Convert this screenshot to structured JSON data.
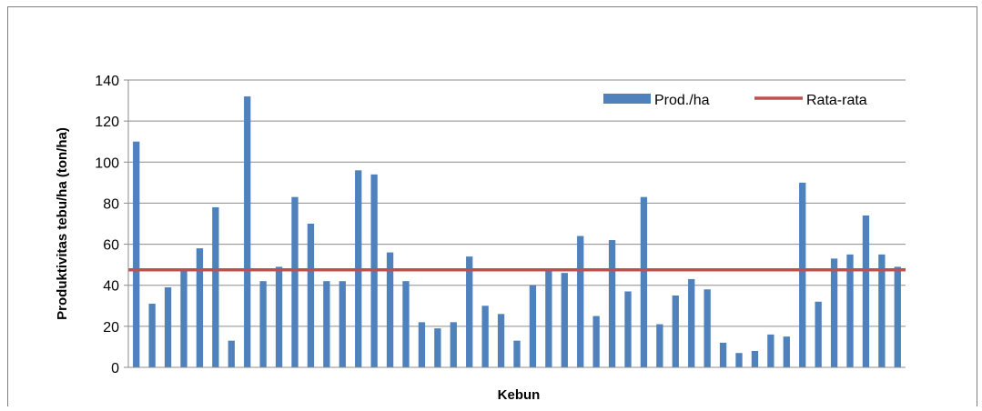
{
  "chart_data": {
    "type": "bar",
    "title": "",
    "xlabel": "Kebun",
    "ylabel": "Produktivitas tebu/ha (ton/ha)",
    "ylim": [
      0,
      140
    ],
    "yticks": [
      0,
      20,
      40,
      60,
      80,
      100,
      120,
      140
    ],
    "grid": true,
    "legend_position": "top-right",
    "series": [
      {
        "name": "Prod./ha",
        "color": "#4f81bd",
        "values": [
          110,
          31,
          39,
          47,
          58,
          78,
          13,
          132,
          42,
          49,
          83,
          70,
          42,
          42,
          96,
          94,
          56,
          42,
          22,
          19,
          22,
          54,
          30,
          26,
          13,
          40,
          47,
          46,
          64,
          25,
          62,
          37,
          83,
          21,
          35,
          43,
          38,
          12,
          7,
          8,
          16,
          15,
          90,
          32,
          53,
          55,
          74,
          55,
          49
        ]
      }
    ],
    "reference_lines": [
      {
        "name": "Rata-rata",
        "color": "#c0504d",
        "value": 47.5
      }
    ]
  }
}
